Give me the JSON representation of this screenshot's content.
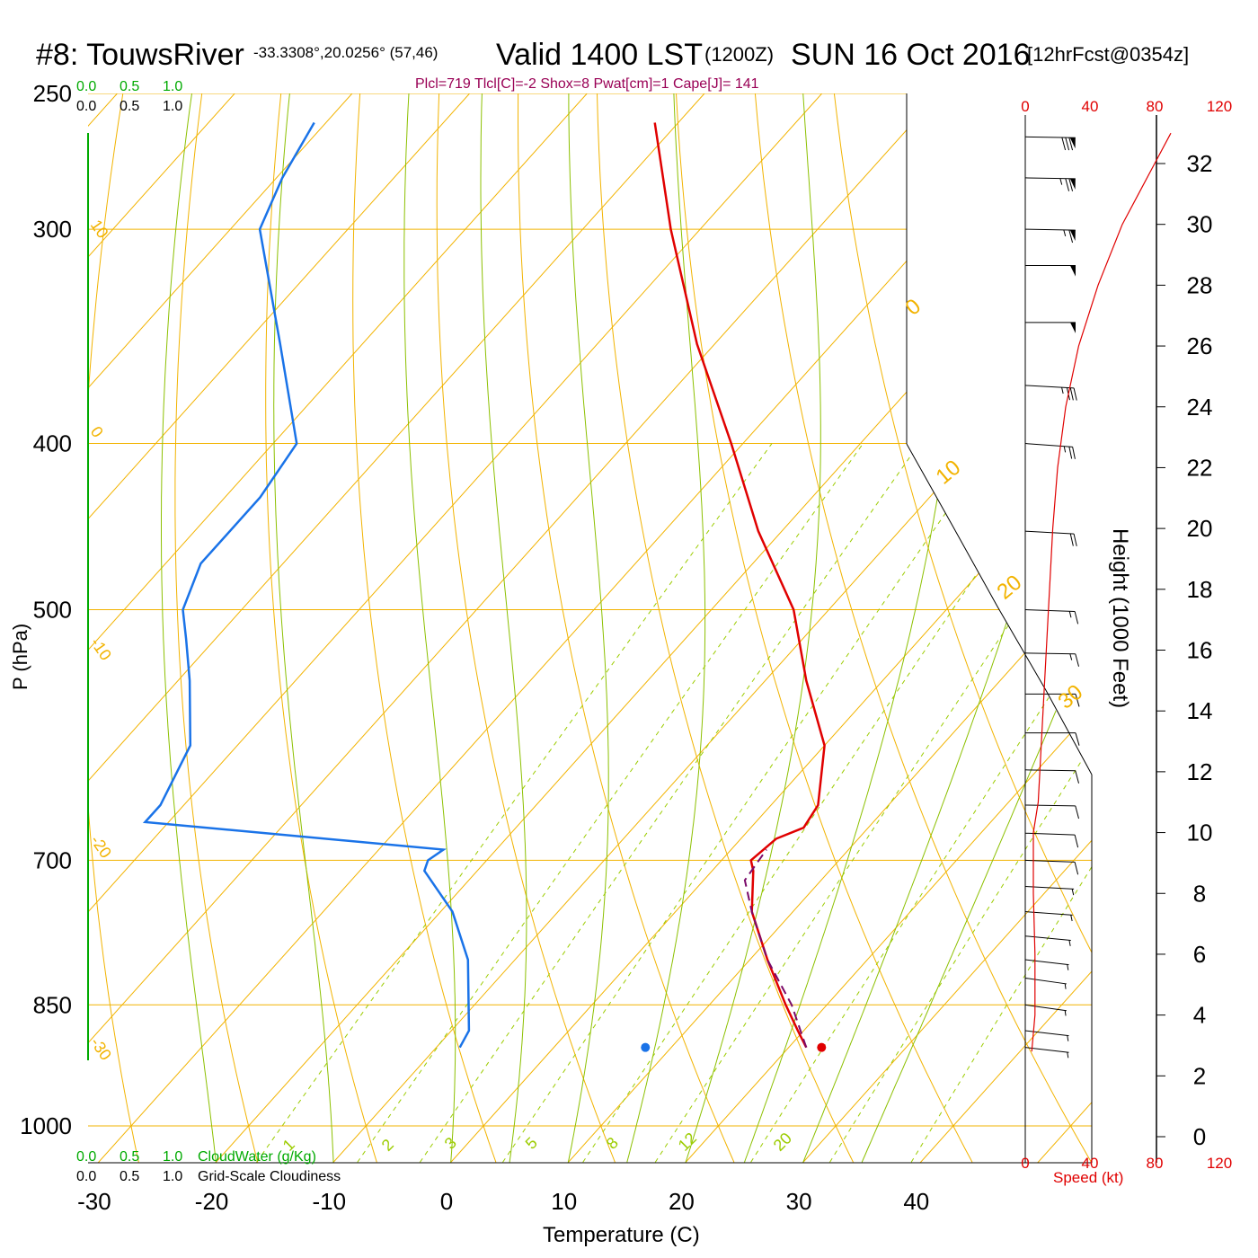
{
  "header": {
    "station": "#8: TouwsRiver",
    "coords": "-33.3308°,20.0256° (57,46)",
    "valid": "Valid 1400 LST",
    "zulu": "(1200Z)",
    "date": "SUN 16 Oct 2016",
    "forecast": "[12hrFcst@0354z]",
    "indices": "Plcl=719 Tlcl[C]=-2 Shox=8 Pwat[cm]=1 Cape[J]= 141"
  },
  "scales": {
    "cloudwater_top": [
      "0.0",
      "0.5",
      "1.0"
    ],
    "cloudiness_top": [
      "0.0",
      "0.5",
      "1.0"
    ],
    "cloudwater_bottom": [
      "0.0",
      "0.5",
      "1.0"
    ],
    "cloudwater_label": "CloudWater (g/Kg)",
    "cloudiness_bottom": [
      "0.0",
      "0.5",
      "1.0"
    ],
    "cloudiness_label": "Grid-Scale Cloudiness"
  },
  "colors": {
    "isobar": "#f2b300",
    "isotherm": "#f2b300",
    "dry_adiabat": "#a8c800",
    "moist_adiabat": "#8cc000",
    "mixing_ratio": "#9ccc00",
    "temperature": "#e00000",
    "dewpoint": "#1a73e8",
    "parcel": "#7a0a6a",
    "cloud_green": "#00aa00",
    "speed_red": "#e00000",
    "indices_color": "#990055"
  },
  "chart_data": {
    "type": "skew-t log-p sounding",
    "xlabel": "Temperature (C)",
    "ylabel": "P (hPa)",
    "x_ticks": [
      -30,
      -20,
      -10,
      0,
      10,
      20,
      30,
      40
    ],
    "y_ticks": [
      250,
      300,
      400,
      500,
      700,
      850,
      1000
    ],
    "pressure_range_hpa": [
      1000,
      250
    ],
    "isotherm_labels": [
      "10",
      "0",
      "-10",
      "-20",
      "-30",
      "0",
      "10",
      "20",
      "30"
    ],
    "mixing_ratio_labels": [
      "1",
      "2",
      "3",
      "5",
      "8",
      "12",
      "20"
    ],
    "temperature_profile": [
      {
        "p": 900,
        "t": 21.5
      },
      {
        "p": 880,
        "t": 19.5
      },
      {
        "p": 850,
        "t": 16.5
      },
      {
        "p": 800,
        "t": 11.5
      },
      {
        "p": 750,
        "t": 6.5
      },
      {
        "p": 710,
        "t": 3.5
      },
      {
        "p": 700,
        "t": 2.5
      },
      {
        "p": 680,
        "t": 3.0
      },
      {
        "p": 670,
        "t": 4.5
      },
      {
        "p": 650,
        "t": 4.0
      },
      {
        "p": 600,
        "t": 0.0
      },
      {
        "p": 550,
        "t": -6.5
      },
      {
        "p": 500,
        "t": -13.0
      },
      {
        "p": 450,
        "t": -22.0
      },
      {
        "p": 400,
        "t": -31.0
      },
      {
        "p": 350,
        "t": -41.5
      },
      {
        "p": 300,
        "t": -52.5
      },
      {
        "p": 260,
        "t": -62.0
      }
    ],
    "dewpoint_profile": [
      {
        "p": 900,
        "t": -8.0
      },
      {
        "p": 880,
        "t": -8.5
      },
      {
        "p": 850,
        "t": -10.5
      },
      {
        "p": 800,
        "t": -14.0
      },
      {
        "p": 750,
        "t": -19.0
      },
      {
        "p": 710,
        "t": -24.5
      },
      {
        "p": 700,
        "t": -25.0
      },
      {
        "p": 690,
        "t": -24.5
      },
      {
        "p": 665,
        "t": -52.0
      },
      {
        "p": 650,
        "t": -52.0
      },
      {
        "p": 600,
        "t": -54.0
      },
      {
        "p": 550,
        "t": -59.0
      },
      {
        "p": 520,
        "t": -62.5
      },
      {
        "p": 500,
        "t": -65.0
      },
      {
        "p": 470,
        "t": -67.0
      },
      {
        "p": 430,
        "t": -67.0
      },
      {
        "p": 400,
        "t": -68.0
      },
      {
        "p": 350,
        "t": -77.0
      },
      {
        "p": 300,
        "t": -87.5
      },
      {
        "p": 280,
        "t": -89.5
      },
      {
        "p": 260,
        "t": -91.0
      }
    ],
    "parcel_profile": [
      {
        "p": 900,
        "t": 21.5
      },
      {
        "p": 850,
        "t": 17.0
      },
      {
        "p": 800,
        "t": 11.5
      },
      {
        "p": 750,
        "t": 6.5
      },
      {
        "p": 719,
        "t": 3.5
      },
      {
        "p": 690,
        "t": 3.0
      }
    ],
    "surface_temperature_c": 22.8,
    "surface_dewpoint_c": 7.8,
    "height_axis": {
      "label": "Height (1000 Feet)",
      "ticks": [
        0,
        2,
        4,
        6,
        8,
        10,
        12,
        14,
        16,
        18,
        20,
        22,
        24,
        26,
        28,
        30,
        32
      ]
    },
    "speed_axis": {
      "label": "Speed (kt)",
      "ticks": [
        "0",
        "40",
        "80",
        "120"
      ]
    },
    "wind_speed_profile": [
      {
        "height_kft": 2.8,
        "speed_kt": 4
      },
      {
        "height_kft": 4,
        "speed_kt": 6
      },
      {
        "height_kft": 6,
        "speed_kt": 6
      },
      {
        "height_kft": 8,
        "speed_kt": 5
      },
      {
        "height_kft": 10,
        "speed_kt": 5
      },
      {
        "height_kft": 11,
        "speed_kt": 8
      },
      {
        "height_kft": 12,
        "speed_kt": 9
      },
      {
        "height_kft": 14,
        "speed_kt": 11
      },
      {
        "height_kft": 16,
        "speed_kt": 13
      },
      {
        "height_kft": 18,
        "speed_kt": 15
      },
      {
        "height_kft": 20,
        "speed_kt": 17
      },
      {
        "height_kft": 22,
        "speed_kt": 20
      },
      {
        "height_kft": 24,
        "speed_kt": 25
      },
      {
        "height_kft": 26,
        "speed_kt": 33
      },
      {
        "height_kft": 28,
        "speed_kt": 45
      },
      {
        "height_kft": 30,
        "speed_kt": 60
      },
      {
        "height_kft": 32,
        "speed_kt": 80
      },
      {
        "height_kft": 33,
        "speed_kt": 90
      }
    ],
    "wind_barbs": [
      {
        "p": 900,
        "dir": 300,
        "speed_kt": 5
      },
      {
        "p": 880,
        "dir": 300,
        "speed_kt": 5
      },
      {
        "p": 850,
        "dir": 305,
        "speed_kt": 5
      },
      {
        "p": 820,
        "dir": 305,
        "speed_kt": 5
      },
      {
        "p": 800,
        "dir": 300,
        "speed_kt": 5
      },
      {
        "p": 775,
        "dir": 295,
        "speed_kt": 5
      },
      {
        "p": 750,
        "dir": 290,
        "speed_kt": 5
      },
      {
        "p": 725,
        "dir": 285,
        "speed_kt": 5
      },
      {
        "p": 700,
        "dir": 280,
        "speed_kt": 10
      },
      {
        "p": 675,
        "dir": 280,
        "speed_kt": 10
      },
      {
        "p": 650,
        "dir": 275,
        "speed_kt": 10
      },
      {
        "p": 620,
        "dir": 275,
        "speed_kt": 10
      },
      {
        "p": 590,
        "dir": 270,
        "speed_kt": 10
      },
      {
        "p": 560,
        "dir": 270,
        "speed_kt": 10
      },
      {
        "p": 530,
        "dir": 275,
        "speed_kt": 15
      },
      {
        "p": 500,
        "dir": 280,
        "speed_kt": 15
      },
      {
        "p": 450,
        "dir": 285,
        "speed_kt": 20
      },
      {
        "p": 400,
        "dir": 290,
        "speed_kt": 25
      },
      {
        "p": 370,
        "dir": 285,
        "speed_kt": 35
      },
      {
        "p": 340,
        "dir": 270,
        "speed_kt": 50
      },
      {
        "p": 315,
        "dir": 270,
        "speed_kt": 50
      },
      {
        "p": 300,
        "dir": 275,
        "speed_kt": 65
      },
      {
        "p": 280,
        "dir": 275,
        "speed_kt": 75
      },
      {
        "p": 265,
        "dir": 275,
        "speed_kt": 80
      }
    ]
  }
}
